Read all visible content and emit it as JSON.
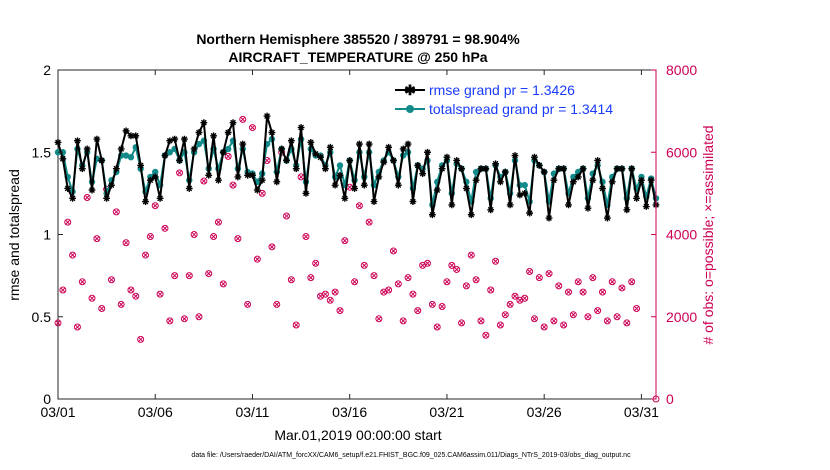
{
  "chart_data": {
    "type": "line",
    "title": "Northern Hemisphere 385520 / 389791 = 98.904%",
    "subtitle": "AIRCRAFT_TEMPERATURE @ 250 hPa",
    "xlabel": "Mar.01,2019 00:00:00 start",
    "ylabel": "rmse and totalspread",
    "y2label": "# of obs: o=possible; ×=assimilated",
    "footer": "data file: /Users/raeder/DAI/ATM_forcXX/CAM6_setup/f.e21.FHIST_BGC.f09_025.CAM6assim.011/Diags_NTrS_2019-03/obs_diag_output.nc",
    "x_tick_labels": [
      "03/01",
      "03/06",
      "03/11",
      "03/16",
      "03/21",
      "03/26",
      "03/31"
    ],
    "x_tick_days": [
      0,
      5,
      10,
      15,
      20,
      25,
      30
    ],
    "xlim": [
      0,
      30.75
    ],
    "ylim": [
      0,
      2
    ],
    "y_ticks": [
      0,
      0.5,
      1,
      1.5,
      2
    ],
    "y2lim": [
      0,
      8000
    ],
    "y2_ticks": [
      0,
      2000,
      4000,
      6000,
      8000
    ],
    "colors": {
      "rmse": "#000000",
      "totalspread": "#138a8a",
      "obs": "#cc0055",
      "legend_text": "#1a3cff"
    },
    "legend": [
      {
        "name": "rmse grand pr = 1.3426",
        "series": "rmse"
      },
      {
        "name": "totalspread grand pr = 1.3414",
        "series": "totalspread"
      }
    ],
    "series": [
      {
        "name": "rmse",
        "axis": "left",
        "x_start": 0,
        "x_step": 0.25,
        "values": [
          1.56,
          1.46,
          1.28,
          1.22,
          1.57,
          1.4,
          1.52,
          1.27,
          1.58,
          1.45,
          1.22,
          1.3,
          1.4,
          1.52,
          1.63,
          1.6,
          1.6,
          1.42,
          1.2,
          1.33,
          1.35,
          1.22,
          1.48,
          1.57,
          1.58,
          1.45,
          1.58,
          1.28,
          1.52,
          1.62,
          1.68,
          1.36,
          1.6,
          1.33,
          1.5,
          1.62,
          1.68,
          1.35,
          1.55,
          1.36,
          1.36,
          1.27,
          1.33,
          1.72,
          1.62,
          1.32,
          1.52,
          1.45,
          1.57,
          1.4,
          1.65,
          1.25,
          1.56,
          1.49,
          1.47,
          1.4,
          1.53,
          1.3,
          1.36,
          1.22,
          1.45,
          1.28,
          1.55,
          1.3,
          1.55,
          1.2,
          1.35,
          1.44,
          1.53,
          1.45,
          1.3,
          1.52,
          1.55,
          1.2,
          1.42,
          1.37,
          1.5,
          1.12,
          1.27,
          1.4,
          1.47,
          1.18,
          1.45,
          1.4,
          1.28,
          1.12,
          1.33,
          1.4,
          1.4,
          1.15,
          1.43,
          1.32,
          1.38,
          1.18,
          1.48,
          1.24,
          1.25,
          1.13,
          1.47,
          1.42,
          1.38,
          1.1,
          1.33,
          1.4,
          1.4,
          1.18,
          1.32,
          1.35,
          1.4,
          1.16,
          1.33,
          1.45,
          1.28,
          1.1,
          1.32,
          1.4,
          1.4,
          1.15,
          1.4,
          1.22,
          1.33,
          1.17,
          1.33,
          1.18
        ]
      },
      {
        "name": "totalspread",
        "axis": "left",
        "x_start": 0,
        "x_step": 0.25,
        "values": [
          1.5,
          1.5,
          1.35,
          1.26,
          1.52,
          1.42,
          1.5,
          1.32,
          1.46,
          1.45,
          1.25,
          1.33,
          1.38,
          1.48,
          1.48,
          1.47,
          1.53,
          1.4,
          1.26,
          1.35,
          1.38,
          1.3,
          1.48,
          1.5,
          1.52,
          1.45,
          1.5,
          1.33,
          1.5,
          1.55,
          1.57,
          1.4,
          1.52,
          1.4,
          1.5,
          1.52,
          1.57,
          1.4,
          1.52,
          1.38,
          1.37,
          1.32,
          1.37,
          1.55,
          1.58,
          1.38,
          1.52,
          1.45,
          1.52,
          1.42,
          1.58,
          1.32,
          1.52,
          1.48,
          1.48,
          1.42,
          1.5,
          1.35,
          1.42,
          1.3,
          1.45,
          1.33,
          1.5,
          1.35,
          1.5,
          1.3,
          1.38,
          1.45,
          1.5,
          1.45,
          1.35,
          1.48,
          1.5,
          1.28,
          1.42,
          1.4,
          1.45,
          1.18,
          1.32,
          1.42,
          1.45,
          1.25,
          1.43,
          1.4,
          1.32,
          1.2,
          1.38,
          1.4,
          1.4,
          1.22,
          1.42,
          1.35,
          1.38,
          1.25,
          1.45,
          1.3,
          1.3,
          1.2,
          1.45,
          1.42,
          1.38,
          1.2,
          1.37,
          1.4,
          1.4,
          1.25,
          1.35,
          1.38,
          1.4,
          1.22,
          1.37,
          1.42,
          1.32,
          1.18,
          1.35,
          1.4,
          1.4,
          1.22,
          1.4,
          1.28,
          1.35,
          1.23,
          1.34,
          1.22
        ]
      },
      {
        "name": "obs possible (o) / assimilated (×)",
        "axis": "right",
        "x_start": 0,
        "x_step": 0.25,
        "values": [
          1850,
          2650,
          4300,
          3500,
          1750,
          2850,
          4900,
          2450,
          3900,
          2200,
          5100,
          2900,
          4550,
          2300,
          3800,
          2650,
          2500,
          1450,
          3500,
          3950,
          4700,
          2550,
          4150,
          1900,
          3000,
          5500,
          1950,
          3000,
          4000,
          2000,
          5300,
          3050,
          3950,
          4300,
          2800,
          5900,
          5200,
          3900,
          6800,
          2300,
          6600,
          3400,
          5000,
          5800,
          3700,
          2300,
          6000,
          4450,
          2900,
          1800,
          5400,
          3950,
          2950,
          3300,
          2500,
          2550,
          2400,
          2600,
          2150,
          3850,
          5150,
          2850,
          4700,
          3250,
          4300,
          3000,
          1950,
          2600,
          2650,
          3600,
          2800,
          1900,
          2950,
          2550,
          2150,
          3250,
          3300,
          2300,
          1750,
          2250,
          2850,
          3250,
          3150,
          1850,
          2750,
          3500,
          2900,
          1900,
          1550,
          2650,
          3350,
          1800,
          2050,
          2300,
          2500,
          2400,
          2450,
          3100,
          1950,
          2950,
          1750,
          3050,
          1900,
          2750,
          1800,
          2600,
          2050,
          2850,
          2600,
          2000,
          2950,
          2150,
          2600,
          1900,
          2850,
          2000,
          2700,
          1850,
          2850,
          2200
        ]
      }
    ],
    "obs_endpoint": {
      "day": 30.75,
      "value": 0
    }
  }
}
